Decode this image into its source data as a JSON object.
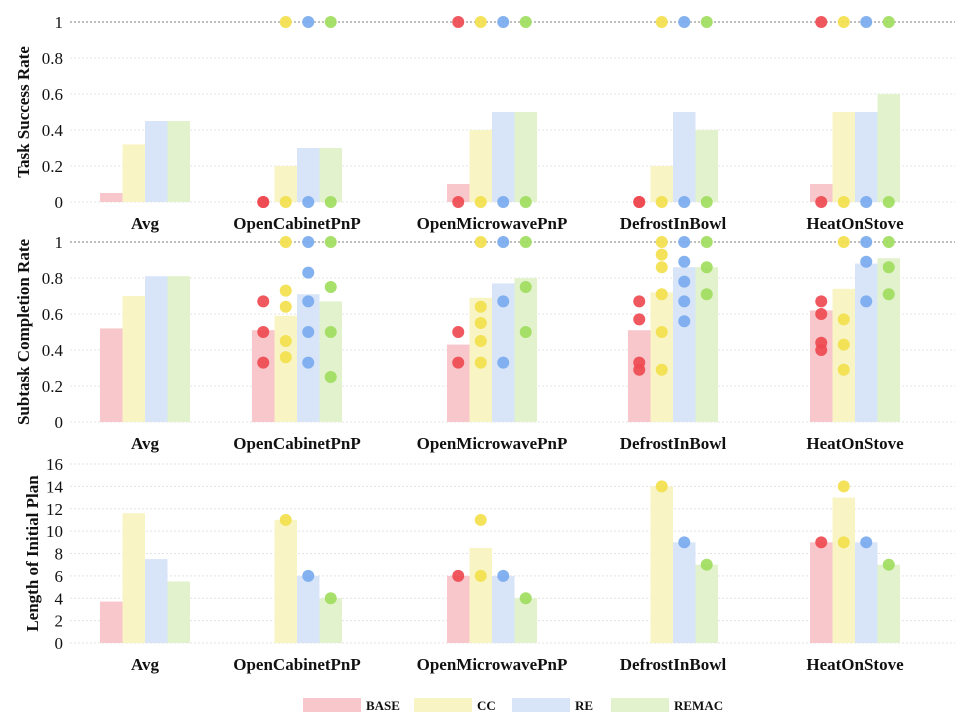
{
  "chart_data": {
    "type": "bar",
    "categories": [
      "Avg",
      "OpenCabinetPnP",
      "OpenMicrowavePnP",
      "DefrostInBowl",
      "HeatOnStove"
    ],
    "legend": {
      "placement": "bottom",
      "entries": [
        {
          "name": "BASE",
          "color": "#f7c7cc"
        },
        {
          "name": "CC",
          "color": "#f8f4c4"
        },
        {
          "name": "RE",
          "color": "#d8e5f8"
        },
        {
          "name": "REMAC",
          "color": "#e2f2cc"
        }
      ]
    },
    "point_colors": {
      "BASE": "#ef4a51",
      "CC": "#f2e04c",
      "RE": "#7aaaee",
      "REMAC": "#9fdd5e"
    },
    "panels": [
      {
        "ylabel": "Task Success Rate",
        "ylim": [
          0,
          1
        ],
        "yticks": [
          "0",
          "0.2",
          "0.4",
          "0.6",
          "0.8",
          "1"
        ],
        "yticks_values": [
          0,
          0.2,
          0.4,
          0.6,
          0.8,
          1
        ],
        "ref_line": 1,
        "bars": {
          "BASE": [
            0.05,
            0,
            0.1,
            0,
            0.1
          ],
          "CC": [
            0.32,
            0.2,
            0.4,
            0.2,
            0.5
          ],
          "RE": [
            0.45,
            0.3,
            0.5,
            0.5,
            0.5
          ],
          "REMAC": [
            0.45,
            0.3,
            0.5,
            0.4,
            0.6
          ]
        },
        "points": {
          "BASE": [
            [],
            [
              0,
              0
            ],
            [
              0,
              1
            ],
            [
              0,
              0
            ],
            [
              0,
              1
            ]
          ],
          "CC": [
            [],
            [
              0,
              1
            ],
            [
              0,
              1
            ],
            [
              0,
              1
            ],
            [
              0,
              1
            ]
          ],
          "RE": [
            [],
            [
              0,
              1
            ],
            [
              0,
              1
            ],
            [
              0,
              1
            ],
            [
              0,
              1
            ]
          ],
          "REMAC": [
            [],
            [
              0,
              1
            ],
            [
              0,
              1
            ],
            [
              0,
              1
            ],
            [
              0,
              1
            ]
          ]
        }
      },
      {
        "ylabel": "Subtask Completion Rate",
        "ylim": [
          0,
          1
        ],
        "yticks": [
          "0",
          "0.2",
          "0.4",
          "0.6",
          "0.8",
          "1"
        ],
        "yticks_values": [
          0,
          0.2,
          0.4,
          0.6,
          0.8,
          1
        ],
        "ref_line": 1,
        "bars": {
          "BASE": [
            0.52,
            0.51,
            0.43,
            0.51,
            0.62
          ],
          "CC": [
            0.7,
            0.59,
            0.69,
            0.72,
            0.74
          ],
          "RE": [
            0.81,
            0.71,
            0.77,
            0.86,
            0.88
          ],
          "REMAC": [
            0.81,
            0.67,
            0.8,
            0.86,
            0.91
          ]
        },
        "points": {
          "BASE": [
            [],
            [
              0.33,
              0.5,
              0.67
            ],
            [
              0.33,
              0.5
            ],
            [
              0.29,
              0.33,
              0.57,
              0.67
            ],
            [
              0.4,
              0.44,
              0.6,
              0.67
            ]
          ],
          "CC": [
            [],
            [
              0.36,
              0.45,
              0.64,
              0.73,
              1
            ],
            [
              0.33,
              0.45,
              0.55,
              0.64,
              1
            ],
            [
              0.29,
              0.5,
              0.71,
              0.86,
              0.93,
              1
            ],
            [
              0.29,
              0.43,
              0.57,
              1
            ]
          ],
          "RE": [
            [],
            [
              0.33,
              0.5,
              0.67,
              0.83,
              1
            ],
            [
              0.33,
              0.67,
              1
            ],
            [
              0.56,
              0.67,
              0.78,
              0.89,
              1
            ],
            [
              0.67,
              0.89,
              1
            ]
          ],
          "REMAC": [
            [],
            [
              0.25,
              0.5,
              0.75,
              1
            ],
            [
              0.5,
              0.75,
              1
            ],
            [
              0.71,
              0.86,
              1
            ],
            [
              0.71,
              0.86,
              1
            ]
          ]
        }
      },
      {
        "ylabel": "Length of Initial Plan",
        "ylim": [
          0,
          16
        ],
        "yticks": [
          "0",
          "2",
          "4",
          "6",
          "8",
          "10",
          "12",
          "14",
          "16"
        ],
        "yticks_values": [
          0,
          2,
          4,
          6,
          8,
          10,
          12,
          14,
          16
        ],
        "ref_line": null,
        "bars": {
          "BASE": [
            3.7,
            0,
            6,
            0,
            9
          ],
          "CC": [
            11.6,
            11,
            8.5,
            14,
            13
          ],
          "RE": [
            7.5,
            6,
            6,
            9,
            9
          ],
          "REMAC": [
            5.5,
            4,
            4,
            7,
            7
          ]
        },
        "points": {
          "BASE": [
            [],
            [],
            [
              6
            ],
            [],
            [
              9
            ]
          ],
          "CC": [
            [],
            [
              11
            ],
            [
              6,
              11
            ],
            [
              14
            ],
            [
              9,
              14
            ]
          ],
          "RE": [
            [],
            [
              6
            ],
            [
              6
            ],
            [
              9
            ],
            [
              9
            ]
          ],
          "REMAC": [
            [],
            [
              4
            ],
            [
              4
            ],
            [
              7
            ],
            [
              7
            ]
          ]
        }
      }
    ]
  }
}
